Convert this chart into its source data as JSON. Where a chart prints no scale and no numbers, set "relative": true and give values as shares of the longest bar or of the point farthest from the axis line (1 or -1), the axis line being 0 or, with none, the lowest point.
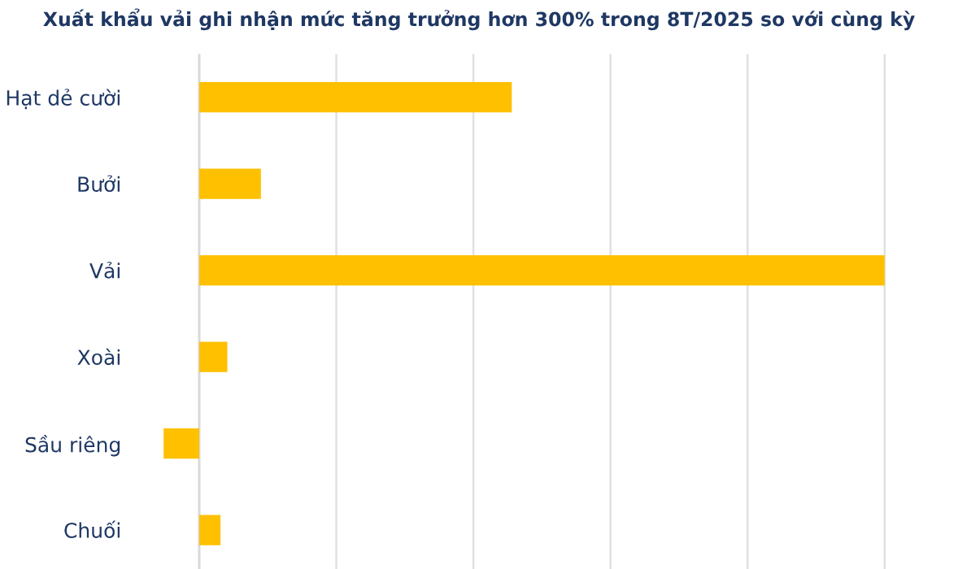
{
  "chart_data": {
    "type": "bar",
    "orientation": "horizontal",
    "relative": true,
    "title": "Xuất khẩu vải ghi nhận mức tăng trưởng hơn 300% trong 8T/2025 so với cùng kỳ",
    "categories": [
      "Hạt dẻ cười",
      "Bưởi",
      "Vải",
      "Xoài",
      "Sầu riêng",
      "Chuối"
    ],
    "values": [
      0.456,
      0.09,
      1,
      0.041,
      -0.052,
      0.031
    ],
    "color": "#ffc000",
    "grid": "x"
  }
}
